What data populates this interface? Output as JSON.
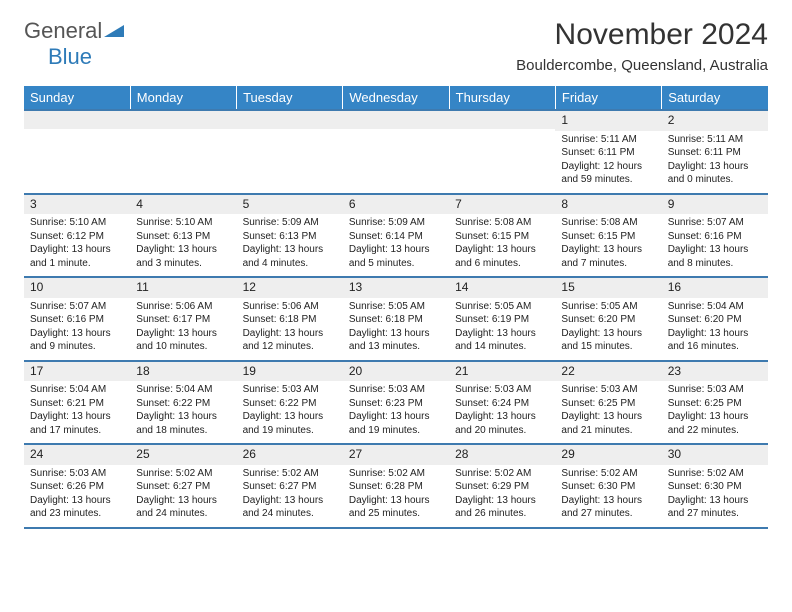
{
  "logo": {
    "general": "General",
    "blue": "Blue",
    "arrow_color": "#2e7bb8"
  },
  "title": "November 2024",
  "location": "Bouldercombe, Queensland, Australia",
  "header_bg": "#3585c6",
  "daynum_bg": "#eeeeee",
  "rule_color": "#3e7aaf",
  "days_of_week": [
    "Sunday",
    "Monday",
    "Tuesday",
    "Wednesday",
    "Thursday",
    "Friday",
    "Saturday"
  ],
  "weeks": [
    [
      {
        "n": "",
        "lines": []
      },
      {
        "n": "",
        "lines": []
      },
      {
        "n": "",
        "lines": []
      },
      {
        "n": "",
        "lines": []
      },
      {
        "n": "",
        "lines": []
      },
      {
        "n": "1",
        "lines": [
          "Sunrise: 5:11 AM",
          "Sunset: 6:11 PM",
          "Daylight: 12 hours",
          "and 59 minutes."
        ]
      },
      {
        "n": "2",
        "lines": [
          "Sunrise: 5:11 AM",
          "Sunset: 6:11 PM",
          "Daylight: 13 hours",
          "and 0 minutes."
        ]
      }
    ],
    [
      {
        "n": "3",
        "lines": [
          "Sunrise: 5:10 AM",
          "Sunset: 6:12 PM",
          "Daylight: 13 hours",
          "and 1 minute."
        ]
      },
      {
        "n": "4",
        "lines": [
          "Sunrise: 5:10 AM",
          "Sunset: 6:13 PM",
          "Daylight: 13 hours",
          "and 3 minutes."
        ]
      },
      {
        "n": "5",
        "lines": [
          "Sunrise: 5:09 AM",
          "Sunset: 6:13 PM",
          "Daylight: 13 hours",
          "and 4 minutes."
        ]
      },
      {
        "n": "6",
        "lines": [
          "Sunrise: 5:09 AM",
          "Sunset: 6:14 PM",
          "Daylight: 13 hours",
          "and 5 minutes."
        ]
      },
      {
        "n": "7",
        "lines": [
          "Sunrise: 5:08 AM",
          "Sunset: 6:15 PM",
          "Daylight: 13 hours",
          "and 6 minutes."
        ]
      },
      {
        "n": "8",
        "lines": [
          "Sunrise: 5:08 AM",
          "Sunset: 6:15 PM",
          "Daylight: 13 hours",
          "and 7 minutes."
        ]
      },
      {
        "n": "9",
        "lines": [
          "Sunrise: 5:07 AM",
          "Sunset: 6:16 PM",
          "Daylight: 13 hours",
          "and 8 minutes."
        ]
      }
    ],
    [
      {
        "n": "10",
        "lines": [
          "Sunrise: 5:07 AM",
          "Sunset: 6:16 PM",
          "Daylight: 13 hours",
          "and 9 minutes."
        ]
      },
      {
        "n": "11",
        "lines": [
          "Sunrise: 5:06 AM",
          "Sunset: 6:17 PM",
          "Daylight: 13 hours",
          "and 10 minutes."
        ]
      },
      {
        "n": "12",
        "lines": [
          "Sunrise: 5:06 AM",
          "Sunset: 6:18 PM",
          "Daylight: 13 hours",
          "and 12 minutes."
        ]
      },
      {
        "n": "13",
        "lines": [
          "Sunrise: 5:05 AM",
          "Sunset: 6:18 PM",
          "Daylight: 13 hours",
          "and 13 minutes."
        ]
      },
      {
        "n": "14",
        "lines": [
          "Sunrise: 5:05 AM",
          "Sunset: 6:19 PM",
          "Daylight: 13 hours",
          "and 14 minutes."
        ]
      },
      {
        "n": "15",
        "lines": [
          "Sunrise: 5:05 AM",
          "Sunset: 6:20 PM",
          "Daylight: 13 hours",
          "and 15 minutes."
        ]
      },
      {
        "n": "16",
        "lines": [
          "Sunrise: 5:04 AM",
          "Sunset: 6:20 PM",
          "Daylight: 13 hours",
          "and 16 minutes."
        ]
      }
    ],
    [
      {
        "n": "17",
        "lines": [
          "Sunrise: 5:04 AM",
          "Sunset: 6:21 PM",
          "Daylight: 13 hours",
          "and 17 minutes."
        ]
      },
      {
        "n": "18",
        "lines": [
          "Sunrise: 5:04 AM",
          "Sunset: 6:22 PM",
          "Daylight: 13 hours",
          "and 18 minutes."
        ]
      },
      {
        "n": "19",
        "lines": [
          "Sunrise: 5:03 AM",
          "Sunset: 6:22 PM",
          "Daylight: 13 hours",
          "and 19 minutes."
        ]
      },
      {
        "n": "20",
        "lines": [
          "Sunrise: 5:03 AM",
          "Sunset: 6:23 PM",
          "Daylight: 13 hours",
          "and 19 minutes."
        ]
      },
      {
        "n": "21",
        "lines": [
          "Sunrise: 5:03 AM",
          "Sunset: 6:24 PM",
          "Daylight: 13 hours",
          "and 20 minutes."
        ]
      },
      {
        "n": "22",
        "lines": [
          "Sunrise: 5:03 AM",
          "Sunset: 6:25 PM",
          "Daylight: 13 hours",
          "and 21 minutes."
        ]
      },
      {
        "n": "23",
        "lines": [
          "Sunrise: 5:03 AM",
          "Sunset: 6:25 PM",
          "Daylight: 13 hours",
          "and 22 minutes."
        ]
      }
    ],
    [
      {
        "n": "24",
        "lines": [
          "Sunrise: 5:03 AM",
          "Sunset: 6:26 PM",
          "Daylight: 13 hours",
          "and 23 minutes."
        ]
      },
      {
        "n": "25",
        "lines": [
          "Sunrise: 5:02 AM",
          "Sunset: 6:27 PM",
          "Daylight: 13 hours",
          "and 24 minutes."
        ]
      },
      {
        "n": "26",
        "lines": [
          "Sunrise: 5:02 AM",
          "Sunset: 6:27 PM",
          "Daylight: 13 hours",
          "and 24 minutes."
        ]
      },
      {
        "n": "27",
        "lines": [
          "Sunrise: 5:02 AM",
          "Sunset: 6:28 PM",
          "Daylight: 13 hours",
          "and 25 minutes."
        ]
      },
      {
        "n": "28",
        "lines": [
          "Sunrise: 5:02 AM",
          "Sunset: 6:29 PM",
          "Daylight: 13 hours",
          "and 26 minutes."
        ]
      },
      {
        "n": "29",
        "lines": [
          "Sunrise: 5:02 AM",
          "Sunset: 6:30 PM",
          "Daylight: 13 hours",
          "and 27 minutes."
        ]
      },
      {
        "n": "30",
        "lines": [
          "Sunrise: 5:02 AM",
          "Sunset: 6:30 PM",
          "Daylight: 13 hours",
          "and 27 minutes."
        ]
      }
    ]
  ]
}
